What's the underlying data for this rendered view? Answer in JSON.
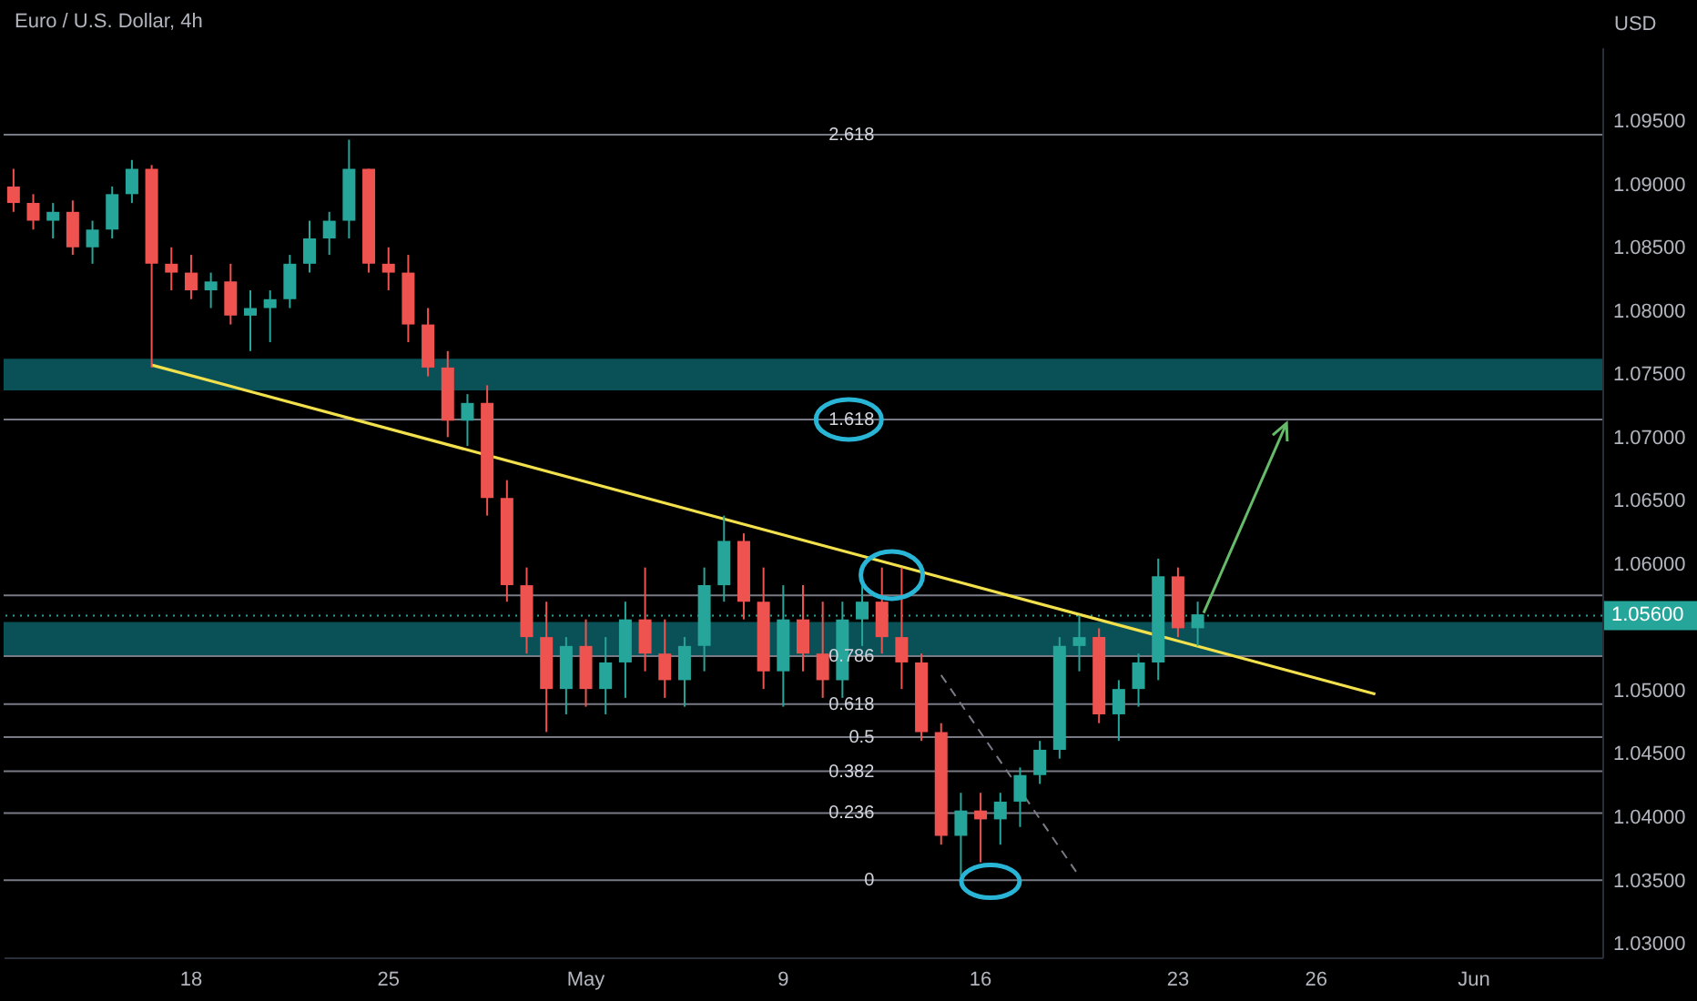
{
  "chart_data": {
    "type": "candlestick",
    "title": "Euro / U.S. Dollar, 4h",
    "ylabel": "USD",
    "categories": [
      null,
      null,
      null,
      null,
      null,
      null,
      null,
      null,
      null,
      "18",
      null,
      null,
      null,
      null,
      null,
      null,
      null,
      null,
      null,
      "25",
      null,
      null,
      null,
      null,
      null,
      null,
      null,
      null,
      null,
      "May",
      null,
      null,
      null,
      null,
      null,
      null,
      null,
      null,
      null,
      "9",
      null,
      null,
      null,
      null,
      null,
      null,
      null,
      null,
      null,
      "16",
      null,
      null,
      null,
      null,
      null,
      null,
      null,
      null,
      null,
      "23",
      null,
      null,
      null,
      null,
      null,
      null,
      "26",
      null,
      null,
      null,
      null,
      null,
      null,
      null,
      "Jun",
      null,
      null,
      null,
      null,
      null,
      null
    ],
    "ohlc": [
      [
        1.0899,
        1.0913,
        1.0879,
        1.0886
      ],
      [
        1.0886,
        1.0893,
        1.0865,
        1.0872
      ],
      [
        1.0872,
        1.0886,
        1.0858,
        1.0879
      ],
      [
        1.0879,
        1.0888,
        1.0845,
        1.0851
      ],
      [
        1.0851,
        1.0872,
        1.0838,
        1.0865
      ],
      [
        1.0865,
        1.0899,
        1.0858,
        1.0893
      ],
      [
        1.0893,
        1.092,
        1.0886,
        1.0913
      ],
      [
        1.0913,
        1.0916,
        1.0756,
        1.0838
      ],
      [
        1.0838,
        1.0851,
        1.0817,
        1.0831
      ],
      [
        1.0831,
        1.0845,
        1.081,
        1.0817
      ],
      [
        1.0817,
        1.0831,
        1.0803,
        1.0824
      ],
      [
        1.0824,
        1.0838,
        1.079,
        1.0797
      ],
      [
        1.0797,
        1.0817,
        1.0769,
        1.0803
      ],
      [
        1.0803,
        1.0817,
        1.0776,
        1.081
      ],
      [
        1.081,
        1.0845,
        1.0803,
        1.0838
      ],
      [
        1.0838,
        1.0872,
        1.0831,
        1.0858
      ],
      [
        1.0858,
        1.0879,
        1.0845,
        1.0872
      ],
      [
        1.0872,
        1.0936,
        1.0858,
        1.0913
      ],
      [
        1.0913,
        1.0913,
        1.0831,
        1.0838
      ],
      [
        1.0838,
        1.0851,
        1.0817,
        1.0831
      ],
      [
        1.0831,
        1.0845,
        1.0776,
        1.079
      ],
      [
        1.079,
        1.0803,
        1.0749,
        1.0756
      ],
      [
        1.0756,
        1.0769,
        1.0701,
        1.0714
      ],
      [
        1.0714,
        1.0735,
        1.0694,
        1.0728
      ],
      [
        1.0728,
        1.0742,
        1.0639,
        1.0653
      ],
      [
        1.0653,
        1.0667,
        1.0571,
        1.0584
      ],
      [
        1.0584,
        1.0598,
        1.053,
        1.0543
      ],
      [
        1.0543,
        1.0571,
        1.0468,
        1.0502
      ],
      [
        1.0502,
        1.0543,
        1.0482,
        1.0536
      ],
      [
        1.0536,
        1.0557,
        1.0488,
        1.0502
      ],
      [
        1.0502,
        1.0543,
        1.0482,
        1.0523
      ],
      [
        1.0523,
        1.0571,
        1.0495,
        1.0557
      ],
      [
        1.0557,
        1.0598,
        1.0516,
        1.053
      ],
      [
        1.053,
        1.0557,
        1.0495,
        1.0509
      ],
      [
        1.0509,
        1.0543,
        1.0488,
        1.0536
      ],
      [
        1.0536,
        1.0598,
        1.0516,
        1.0584
      ],
      [
        1.0584,
        1.0639,
        1.0571,
        1.0619
      ],
      [
        1.0619,
        1.0625,
        1.0557,
        1.0571
      ],
      [
        1.0571,
        1.0598,
        1.0502,
        1.0516
      ],
      [
        1.0516,
        1.0584,
        1.0488,
        1.0557
      ],
      [
        1.0557,
        1.0584,
        1.0516,
        1.053
      ],
      [
        1.053,
        1.0571,
        1.0495,
        1.0509
      ],
      [
        1.0509,
        1.0571,
        1.0495,
        1.0557
      ],
      [
        1.0557,
        1.0584,
        1.0536,
        1.0571
      ],
      [
        1.0571,
        1.0598,
        1.053,
        1.0543
      ],
      [
        1.0543,
        1.0598,
        1.0502,
        1.0523
      ],
      [
        1.0523,
        1.053,
        1.0461,
        1.0468
      ],
      [
        1.0468,
        1.0475,
        1.0379,
        1.0386
      ],
      [
        1.0386,
        1.042,
        1.0354,
        1.0406
      ],
      [
        1.0406,
        1.042,
        1.0365,
        1.0399
      ],
      [
        1.0399,
        1.042,
        1.0379,
        1.0413
      ],
      [
        1.0413,
        1.044,
        1.0393,
        1.0434
      ],
      [
        1.0434,
        1.0461,
        1.0427,
        1.0454
      ],
      [
        1.0454,
        1.0543,
        1.0447,
        1.0536
      ],
      [
        1.0536,
        1.056,
        1.0516,
        1.0543
      ],
      [
        1.0543,
        1.055,
        1.0475,
        1.0482
      ],
      [
        1.0482,
        1.0509,
        1.0461,
        1.0502
      ],
      [
        1.0502,
        1.053,
        1.0488,
        1.0523
      ],
      [
        1.0523,
        1.0605,
        1.0509,
        1.0591
      ],
      [
        1.0591,
        1.0598,
        1.0543,
        1.055
      ],
      [
        1.055,
        1.0571,
        1.0536,
        1.0561
      ],
      null,
      null,
      null,
      null,
      null,
      null,
      null,
      null,
      null,
      null,
      null,
      null,
      null,
      null,
      null,
      null,
      null,
      null,
      null,
      null
    ],
    "colors": [
      "#ef5350",
      "#ef5350",
      "#26a69a",
      "#ef5350",
      "#26a69a",
      "#26a69a",
      "#26a69a",
      "#ef5350",
      "#ef5350",
      "#ef5350",
      "#26a69a",
      "#ef5350",
      "#26a69a",
      "#26a69a",
      "#26a69a",
      "#26a69a",
      "#26a69a",
      "#26a69a",
      "#ef5350",
      "#ef5350",
      "#ef5350",
      "#ef5350",
      "#ef5350",
      "#26a69a",
      "#ef5350",
      "#ef5350",
      "#ef5350",
      "#ef5350",
      "#26a69a",
      "#ef5350",
      "#26a69a",
      "#26a69a",
      "#ef5350",
      "#ef5350",
      "#26a69a",
      "#26a69a",
      "#26a69a",
      "#ef5350",
      "#ef5350",
      "#26a69a",
      "#ef5350",
      "#ef5350",
      "#26a69a",
      "#26a69a",
      "#ef5350",
      "#ef5350",
      "#ef5350",
      "#ef5350",
      "#26a69a",
      "#ef5350",
      "#26a69a",
      "#26a69a",
      "#26a69a",
      "#26a69a",
      "#26a69a",
      "#ef5350",
      "#26a69a",
      "#26a69a",
      "#26a69a",
      "#ef5350",
      "#26a69a",
      null,
      null,
      null,
      null,
      null,
      null,
      null,
      null,
      null,
      null,
      null,
      null,
      null,
      null,
      null,
      null,
      null,
      null,
      null,
      null
    ],
    "series": [
      {
        "type": "line",
        "color": "#f2e14c",
        "line_style": "solid",
        "values": [
          null,
          null,
          null,
          null,
          null,
          null,
          null,
          1.0758,
          null,
          null,
          null,
          null,
          null,
          null,
          null,
          null,
          null,
          null,
          null,
          null,
          null,
          null,
          null,
          null,
          null,
          null,
          null,
          null,
          null,
          null,
          null,
          null,
          null,
          null,
          null,
          null,
          null,
          null,
          null,
          null,
          null,
          null,
          null,
          null,
          null,
          null,
          null,
          null,
          null,
          null,
          null,
          null,
          null,
          null,
          null,
          null,
          null,
          null,
          null,
          null,
          null,
          null,
          null,
          null,
          null,
          null,
          null,
          null,
          null,
          1.0498,
          null,
          null,
          null,
          null,
          null,
          null,
          null,
          null,
          null,
          null,
          null
        ]
      },
      {
        "type": "line",
        "color": "#787b86",
        "line_style": "dashed",
        "values": [
          null,
          null,
          null,
          null,
          null,
          null,
          null,
          null,
          null,
          null,
          null,
          null,
          null,
          null,
          null,
          null,
          null,
          null,
          null,
          null,
          null,
          null,
          null,
          null,
          null,
          null,
          null,
          null,
          null,
          null,
          null,
          null,
          null,
          null,
          null,
          null,
          null,
          null,
          null,
          null,
          null,
          null,
          null,
          null,
          null,
          null,
          null,
          1.0513,
          null,
          null,
          null,
          null,
          null,
          null,
          1.0354,
          null,
          null,
          null,
          null,
          null,
          null,
          null,
          null,
          null,
          null,
          null,
          null,
          null,
          null,
          null,
          null,
          null,
          null,
          null,
          null,
          null,
          null,
          null,
          null,
          null,
          null
        ]
      }
    ],
    "ylim": [
      1.029,
      1.1009
    ],
    "yticks": [
      {
        "value": 1.03,
        "label": "1.03000"
      },
      {
        "value": 1.035,
        "label": "1.03500"
      },
      {
        "value": 1.04,
        "label": "1.04000"
      },
      {
        "value": 1.045,
        "label": "1.04500"
      },
      {
        "value": 1.05,
        "label": "1.05000"
      },
      {
        "value": 1.06,
        "label": "1.06000"
      },
      {
        "value": 1.065,
        "label": "1.06500"
      },
      {
        "value": 1.07,
        "label": "1.07000"
      },
      {
        "value": 1.075,
        "label": "1.07500"
      },
      {
        "value": 1.08,
        "label": "1.08000"
      },
      {
        "value": 1.085,
        "label": "1.08500"
      },
      {
        "value": 1.09,
        "label": "1.09000"
      },
      {
        "value": 1.095,
        "label": "1.09500"
      }
    ],
    "ref_lines": [
      {
        "axis": "y",
        "value": 1.094,
        "color": "#787b86",
        "line_style": "solid"
      },
      {
        "axis": "y",
        "value": 1.0715,
        "color": "#787b86",
        "line_style": "solid"
      },
      {
        "axis": "y",
        "value": 1.0576,
        "color": "#787b86",
        "line_style": "solid"
      },
      {
        "axis": "y",
        "value": 1.0528,
        "color": "#787b86",
        "line_style": "solid"
      },
      {
        "axis": "y",
        "value": 1.049,
        "color": "#787b86",
        "line_style": "solid"
      },
      {
        "axis": "y",
        "value": 1.0464,
        "color": "#787b86",
        "line_style": "solid"
      },
      {
        "axis": "y",
        "value": 1.0437,
        "color": "#787b86",
        "line_style": "solid"
      },
      {
        "axis": "y",
        "value": 1.0404,
        "color": "#787b86",
        "line_style": "solid"
      },
      {
        "axis": "y",
        "value": 1.0351,
        "color": "#787b86",
        "line_style": "solid"
      },
      {
        "axis": "y",
        "value": 1.056,
        "label": "1.05600",
        "color": "#26a69a",
        "line_style": "dotted"
      }
    ],
    "annotations": [
      {
        "text": "2.618",
        "y": 1.094
      },
      {
        "text": "1.618",
        "y": 1.0715
      },
      {
        "text": "0.786",
        "y": 1.0528
      },
      {
        "text": "0.618",
        "y": 1.049
      },
      {
        "text": "0.5",
        "y": 1.0464
      },
      {
        "text": "0.382",
        "y": 1.0437
      },
      {
        "text": "0.236",
        "y": 1.0404
      },
      {
        "text": "0",
        "y": 1.0351
      }
    ],
    "bands": [
      {
        "axis": "y",
        "from": 1.0738,
        "to": 1.0763,
        "color": "#0b5a60"
      },
      {
        "axis": "y",
        "from": 1.0528,
        "to": 1.0555,
        "color": "#0b5a60"
      }
    ]
  }
}
